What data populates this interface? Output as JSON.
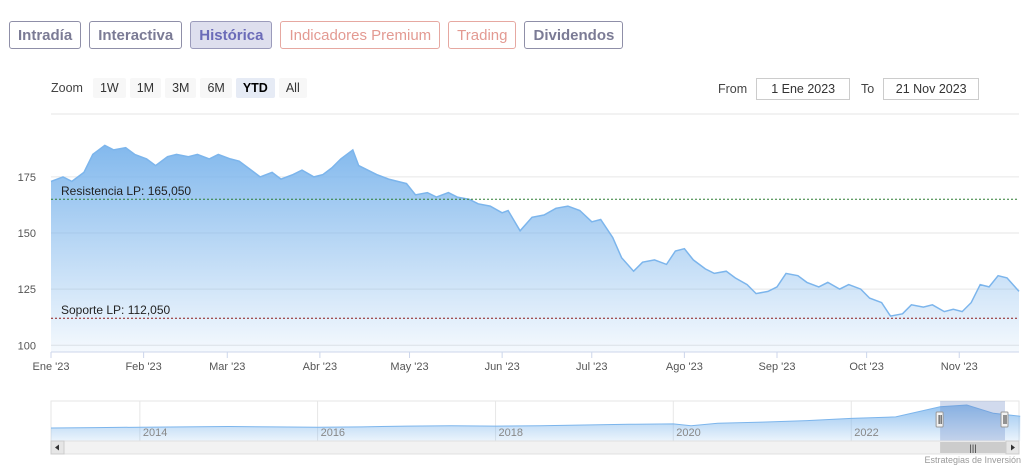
{
  "tabs": [
    {
      "label": "Intradía",
      "style": "normal"
    },
    {
      "label": "Interactiva",
      "style": "normal"
    },
    {
      "label": "Histórica",
      "style": "active"
    },
    {
      "label": "Indicadores Premium",
      "style": "premium"
    },
    {
      "label": "Trading",
      "style": "trading"
    },
    {
      "label": "Dividendos",
      "style": "normal"
    }
  ],
  "zoom": {
    "label": "Zoom",
    "buttons": [
      "1W",
      "1M",
      "3M",
      "6M",
      "YTD",
      "All"
    ],
    "selected": "YTD"
  },
  "range": {
    "from_label": "From",
    "from_value": "1 Ene 2023",
    "to_label": "To",
    "to_value": "21 Nov 2023"
  },
  "credit": "Estrategias de Inversión",
  "colors": {
    "series_line": "#7cb5ec",
    "resistance": "#2e7d32",
    "support": "#8b1a1a",
    "tab_active_bg": "#dedfee",
    "tab_premium": "#e39a92"
  },
  "chart_data": {
    "type": "area",
    "title": "",
    "xlabel": "",
    "ylabel": "",
    "x_range": [
      "2023-01-01",
      "2023-11-21"
    ],
    "ylim": [
      97,
      203
    ],
    "y_ticks": [
      100,
      125,
      150,
      175
    ],
    "x_ticks": [
      {
        "date": "2023-01-01",
        "label": "Ene '23"
      },
      {
        "date": "2023-02-01",
        "label": "Feb '23"
      },
      {
        "date": "2023-03-01",
        "label": "Mar '23"
      },
      {
        "date": "2023-04-01",
        "label": "Abr '23"
      },
      {
        "date": "2023-05-01",
        "label": "May '23"
      },
      {
        "date": "2023-06-01",
        "label": "Jun '23"
      },
      {
        "date": "2023-07-01",
        "label": "Jul '23"
      },
      {
        "date": "2023-08-01",
        "label": "Ago '23"
      },
      {
        "date": "2023-09-01",
        "label": "Sep '23"
      },
      {
        "date": "2023-10-01",
        "label": "Oct '23"
      },
      {
        "date": "2023-11-01",
        "label": "Nov '23"
      }
    ],
    "grid": true,
    "series": [
      {
        "values": [
          [
            "2023-01-01",
            173
          ],
          [
            "2023-01-05",
            175
          ],
          [
            "2023-01-08",
            173
          ],
          [
            "2023-01-12",
            177
          ],
          [
            "2023-01-15",
            185
          ],
          [
            "2023-01-19",
            189
          ],
          [
            "2023-01-22",
            187
          ],
          [
            "2023-01-26",
            188
          ],
          [
            "2023-01-29",
            185
          ],
          [
            "2023-02-02",
            183
          ],
          [
            "2023-02-05",
            180
          ],
          [
            "2023-02-09",
            184
          ],
          [
            "2023-02-12",
            185
          ],
          [
            "2023-02-16",
            184
          ],
          [
            "2023-02-19",
            185
          ],
          [
            "2023-02-23",
            183
          ],
          [
            "2023-02-26",
            185
          ],
          [
            "2023-03-02",
            183
          ],
          [
            "2023-03-05",
            182
          ],
          [
            "2023-03-09",
            178
          ],
          [
            "2023-03-12",
            175
          ],
          [
            "2023-03-16",
            177
          ],
          [
            "2023-03-19",
            174
          ],
          [
            "2023-03-23",
            176
          ],
          [
            "2023-03-26",
            178
          ],
          [
            "2023-03-30",
            175
          ],
          [
            "2023-04-02",
            176
          ],
          [
            "2023-04-05",
            179
          ],
          [
            "2023-04-08",
            183
          ],
          [
            "2023-04-12",
            187
          ],
          [
            "2023-04-14",
            180
          ],
          [
            "2023-04-17",
            178
          ],
          [
            "2023-04-20",
            176
          ],
          [
            "2023-04-24",
            174
          ],
          [
            "2023-04-27",
            173
          ],
          [
            "2023-04-30",
            172
          ],
          [
            "2023-05-03",
            167
          ],
          [
            "2023-05-07",
            168
          ],
          [
            "2023-05-10",
            166
          ],
          [
            "2023-05-14",
            168
          ],
          [
            "2023-05-17",
            166
          ],
          [
            "2023-05-21",
            165
          ],
          [
            "2023-05-24",
            163
          ],
          [
            "2023-05-28",
            162
          ],
          [
            "2023-06-01",
            159
          ],
          [
            "2023-06-03",
            160
          ],
          [
            "2023-06-07",
            151
          ],
          [
            "2023-06-11",
            157
          ],
          [
            "2023-06-15",
            158
          ],
          [
            "2023-06-19",
            161
          ],
          [
            "2023-06-23",
            162
          ],
          [
            "2023-06-27",
            160
          ],
          [
            "2023-07-01",
            155
          ],
          [
            "2023-07-04",
            156
          ],
          [
            "2023-07-08",
            148
          ],
          [
            "2023-07-11",
            139
          ],
          [
            "2023-07-15",
            133
          ],
          [
            "2023-07-18",
            137
          ],
          [
            "2023-07-22",
            138
          ],
          [
            "2023-07-26",
            136
          ],
          [
            "2023-07-29",
            142
          ],
          [
            "2023-08-01",
            143
          ],
          [
            "2023-08-04",
            138
          ],
          [
            "2023-08-08",
            134
          ],
          [
            "2023-08-11",
            132
          ],
          [
            "2023-08-15",
            133
          ],
          [
            "2023-08-18",
            130
          ],
          [
            "2023-08-22",
            127
          ],
          [
            "2023-08-25",
            123
          ],
          [
            "2023-08-29",
            124
          ],
          [
            "2023-09-01",
            126
          ],
          [
            "2023-09-04",
            132
          ],
          [
            "2023-09-08",
            131
          ],
          [
            "2023-09-11",
            128
          ],
          [
            "2023-09-15",
            126
          ],
          [
            "2023-09-18",
            128
          ],
          [
            "2023-09-22",
            125
          ],
          [
            "2023-09-25",
            127
          ],
          [
            "2023-09-29",
            125
          ],
          [
            "2023-10-02",
            121
          ],
          [
            "2023-10-06",
            119
          ],
          [
            "2023-10-09",
            113
          ],
          [
            "2023-10-13",
            114
          ],
          [
            "2023-10-16",
            118
          ],
          [
            "2023-10-20",
            117
          ],
          [
            "2023-10-23",
            118
          ],
          [
            "2023-10-27",
            115
          ],
          [
            "2023-10-30",
            116
          ],
          [
            "2023-11-02",
            115
          ],
          [
            "2023-11-05",
            119
          ],
          [
            "2023-11-08",
            127
          ],
          [
            "2023-11-11",
            126
          ],
          [
            "2023-11-14",
            131
          ],
          [
            "2023-11-17",
            130
          ],
          [
            "2023-11-21",
            124
          ]
        ]
      }
    ],
    "annotations": [
      {
        "label": "Resistencia LP: 165,050",
        "value": 165.05,
        "color": "#2e7d32",
        "style": "dashed"
      },
      {
        "label": "Soporte LP: 112,050",
        "value": 112.05,
        "color": "#8b1a1a",
        "style": "dashed"
      }
    ],
    "navigator": {
      "x_range": [
        "2013-01-01",
        "2023-11-21"
      ],
      "tick_labels": [
        "2014",
        "2016",
        "2018",
        "2020",
        "2022"
      ],
      "tick_years": [
        2014,
        2016,
        2018,
        2020,
        2022
      ],
      "selected_range": [
        "2023-01-01",
        "2023-11-21"
      ],
      "handle_glyph": "|||",
      "values": [
        [
          2013.0,
          60
        ],
        [
          2013.5,
          62
        ],
        [
          2014.0,
          64
        ],
        [
          2014.5,
          66
        ],
        [
          2015.0,
          68
        ],
        [
          2015.5,
          66
        ],
        [
          2016.0,
          64
        ],
        [
          2016.5,
          66
        ],
        [
          2017.0,
          70
        ],
        [
          2017.5,
          72
        ],
        [
          2018.0,
          70
        ],
        [
          2018.5,
          72
        ],
        [
          2019.0,
          76
        ],
        [
          2019.5,
          80
        ],
        [
          2020.0,
          82
        ],
        [
          2020.2,
          72
        ],
        [
          2020.5,
          86
        ],
        [
          2021.0,
          92
        ],
        [
          2021.5,
          100
        ],
        [
          2022.0,
          112
        ],
        [
          2022.5,
          120
        ],
        [
          2023.0,
          175
        ],
        [
          2023.3,
          185
        ],
        [
          2023.6,
          140
        ],
        [
          2023.9,
          124
        ]
      ]
    }
  }
}
